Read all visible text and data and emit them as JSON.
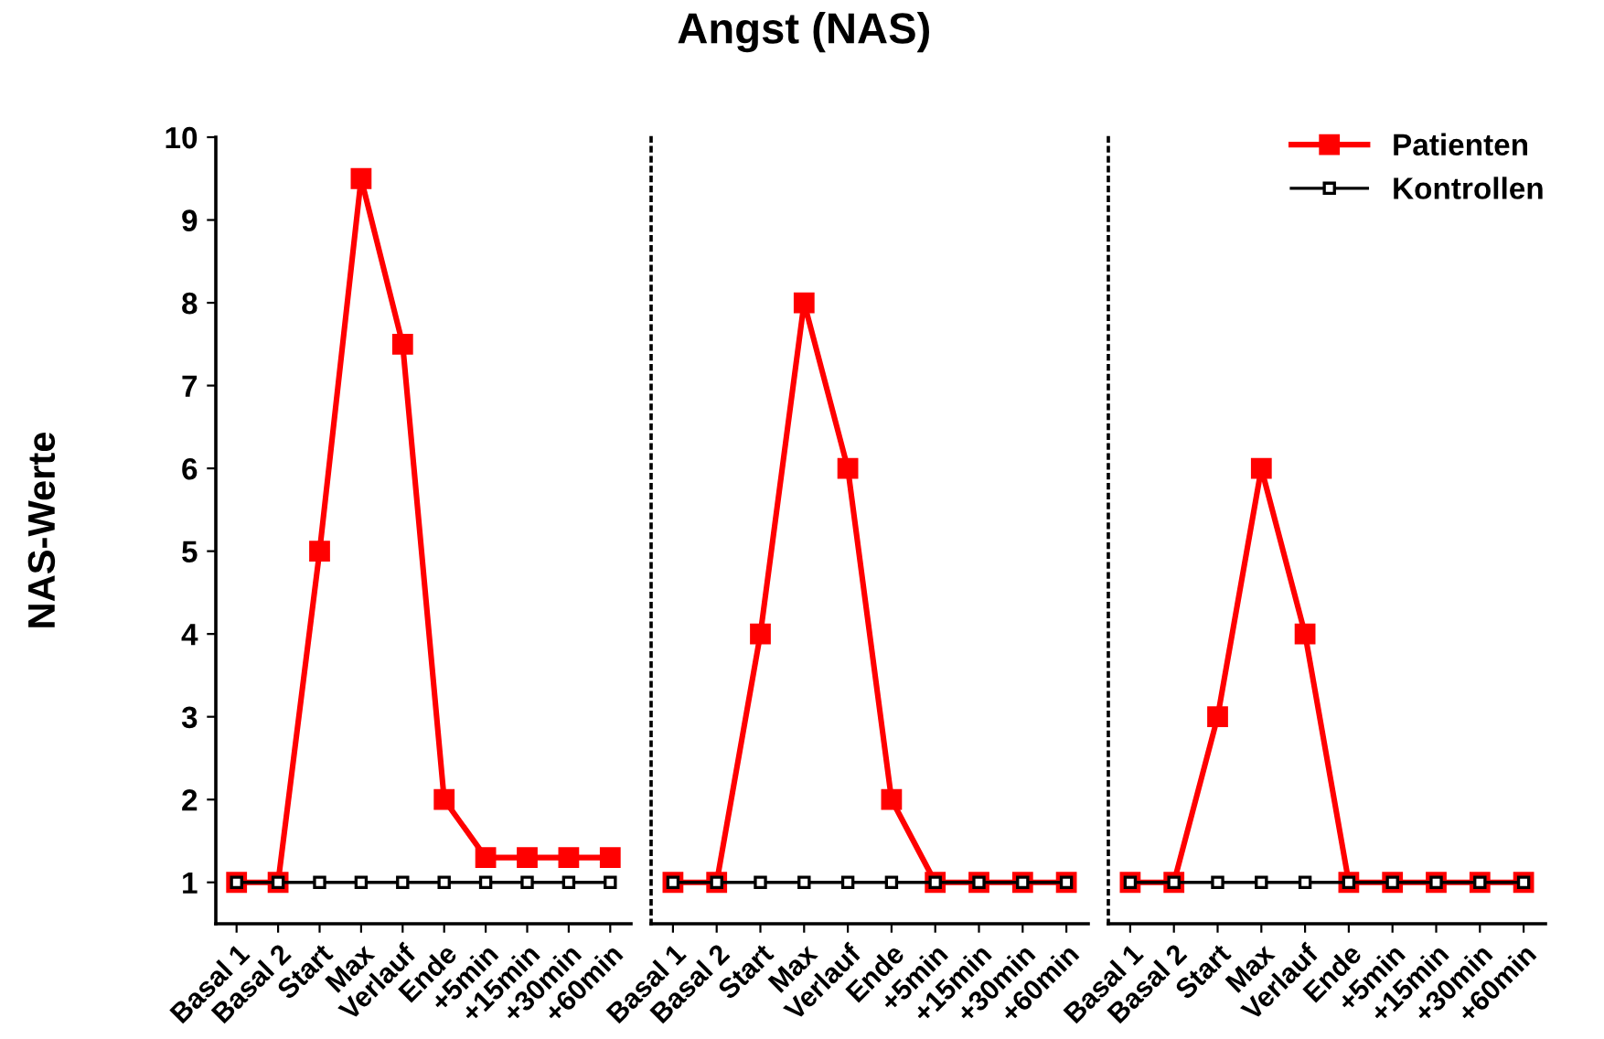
{
  "chart_data": [
    {
      "type": "line",
      "ylabel": "NAS-Werte",
      "categories": [
        "Basal 1",
        "Basal 2",
        "Start",
        "Max",
        "Verlauf",
        "Ende",
        "+5min",
        "+15min",
        "+30min",
        "+60min"
      ],
      "series": [
        {
          "color": "#ff0000",
          "values": [
            1,
            1,
            5,
            9.5,
            7.5,
            2,
            1.3,
            1.3,
            1.3,
            1.3
          ]
        },
        {
          "color": "#000000",
          "values": [
            1,
            1,
            1,
            1,
            1,
            1,
            1,
            1,
            1,
            1
          ]
        }
      ],
      "ylim": [
        0.5,
        10
      ],
      "yticks": [
        1,
        2,
        3,
        4,
        5,
        6,
        7,
        8,
        9,
        10
      ],
      "marker": "square",
      "grid": false
    },
    {
      "type": "line",
      "title": "Angst (NAS)",
      "categories": [
        "Basal 1",
        "Basal 2",
        "Start",
        "Max",
        "Verlauf",
        "Ende",
        "+5min",
        "+15min",
        "+30min",
        "+60min"
      ],
      "series": [
        {
          "color": "#ff0000",
          "values": [
            1,
            1,
            4,
            8,
            6,
            2,
            1,
            1,
            1,
            1
          ]
        },
        {
          "color": "#000000",
          "values": [
            1,
            1,
            1,
            1,
            1,
            1,
            1,
            1,
            1,
            1
          ]
        }
      ],
      "ylim": [
        0.5,
        10
      ],
      "tick_labels": "x",
      "marker": "square",
      "grid": false
    },
    {
      "type": "line",
      "categories": [
        "Basal 1",
        "Basal 2",
        "Start",
        "Max",
        "Verlauf",
        "Ende",
        "+5min",
        "+15min",
        "+30min",
        "+60min"
      ],
      "series": [
        {
          "name": "Patienten",
          "color": "#ff0000",
          "values": [
            1,
            1,
            3,
            6,
            4,
            1,
            1,
            1,
            1,
            1
          ]
        },
        {
          "name": "Kontrollen",
          "color": "#000000",
          "values": [
            1,
            1,
            1,
            1,
            1,
            1,
            1,
            1,
            1,
            1
          ]
        }
      ],
      "ylim": [
        0.5,
        10
      ],
      "tick_labels": "x",
      "marker": "square",
      "legend": "top right",
      "grid": false
    }
  ]
}
